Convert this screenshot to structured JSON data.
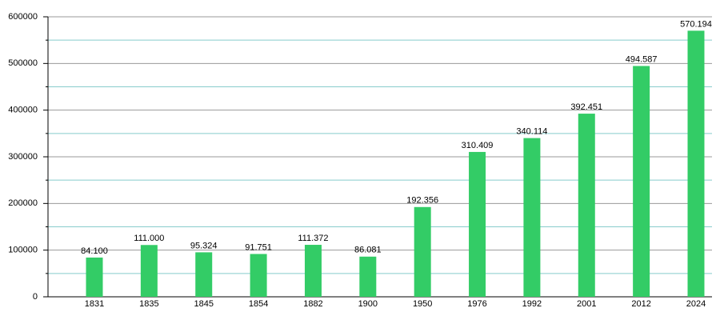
{
  "chart_data": {
    "type": "bar",
    "categories": [
      "1831",
      "1835",
      "1845",
      "1854",
      "1882",
      "1900",
      "1950",
      "1976",
      "1992",
      "2001",
      "2012",
      "2024"
    ],
    "values": [
      84100,
      111000,
      95324,
      91751,
      111372,
      86081,
      192356,
      310409,
      340114,
      392451,
      494587,
      570194
    ],
    "value_labels": [
      "84.100",
      "111.000",
      "95.324",
      "91.751",
      "111.372",
      "86.081",
      "192.356",
      "310.409",
      "340.114",
      "392.451",
      "494.587",
      "570.194"
    ],
    "color": "#33cc66",
    "ylim": [
      0,
      600000
    ],
    "yticks": [
      0,
      100000,
      200000,
      300000,
      400000,
      500000,
      600000
    ],
    "minor_yticks": [
      50000,
      150000,
      250000,
      350000,
      450000,
      550000
    ],
    "grid": true
  }
}
